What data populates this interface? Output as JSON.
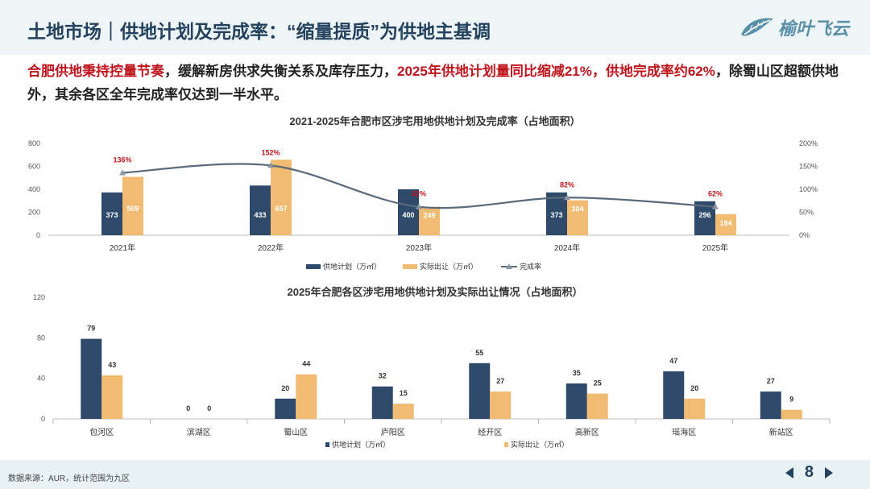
{
  "header": {
    "title": "土地市场｜供地计划及完成率：“缩量提质”为供地主基调",
    "logo_text": "榆叶飞云",
    "logo_icon": "leaf-icon"
  },
  "summary": [
    {
      "text": "合肥供地秉持控量节奏",
      "red": true
    },
    {
      "text": "，缓解新房供求失衡关系及库存压力，",
      "red": false
    },
    {
      "text": "2025年供地计划量同比缩减21%，供地完成率约62%",
      "red": true
    },
    {
      "text": "，除蜀山区超额供地外，其余各区全年完成率仅达到一半水平。",
      "red": false
    }
  ],
  "colors": {
    "plan": "#2e4a6b",
    "actual": "#f2bb72",
    "rate": "#5b6a7a",
    "rate_label": "#c0141c"
  },
  "chart_data": [
    {
      "type": "bar",
      "title": "2021-2025年合肥市区涉宅用地供地计划及完成率（占地面积）",
      "categories": [
        "2021年",
        "2022年",
        "2023年",
        "2024年",
        "2025年"
      ],
      "series": [
        {
          "name": "供地计划（万㎡）",
          "values": [
            373,
            433,
            400,
            373,
            296
          ]
        },
        {
          "name": "实际出让（万㎡）",
          "values": [
            509,
            657,
            249,
            304,
            184
          ]
        },
        {
          "name": "完成率",
          "type": "line",
          "axis": "right",
          "values": [
            136,
            152,
            62,
            82,
            62
          ],
          "labels": [
            "136%",
            "152%",
            "62%",
            "82%",
            "62%"
          ]
        }
      ],
      "ylim": [
        0,
        800
      ],
      "yticks": [
        "0",
        "200",
        "400",
        "600",
        "800"
      ],
      "y2lim": [
        0,
        200
      ],
      "y2ticks": [
        "0%",
        "50%",
        "100%",
        "150%",
        "200%"
      ],
      "legend": "bottom"
    },
    {
      "type": "bar",
      "title": "2025年合肥各区涉宅用地供地计划及实际出让情况（占地面积）",
      "categories": [
        "包河区",
        "滨湖区",
        "蜀山区",
        "庐阳区",
        "经开区",
        "高新区",
        "瑶海区",
        "新站区"
      ],
      "series": [
        {
          "name": "供地计划（万㎡）",
          "values": [
            79,
            0,
            20,
            32,
            55,
            35,
            47,
            27
          ]
        },
        {
          "name": "实际出让（万㎡）",
          "values": [
            43,
            0,
            44,
            15,
            27,
            25,
            20,
            9
          ]
        }
      ],
      "ylim": [
        0,
        120
      ],
      "yticks": [
        "0",
        "40",
        "80",
        "120"
      ],
      "legend": "bottom"
    }
  ],
  "footer": {
    "source": "数据来源：AUR，统计范围为九区",
    "page": "8"
  }
}
